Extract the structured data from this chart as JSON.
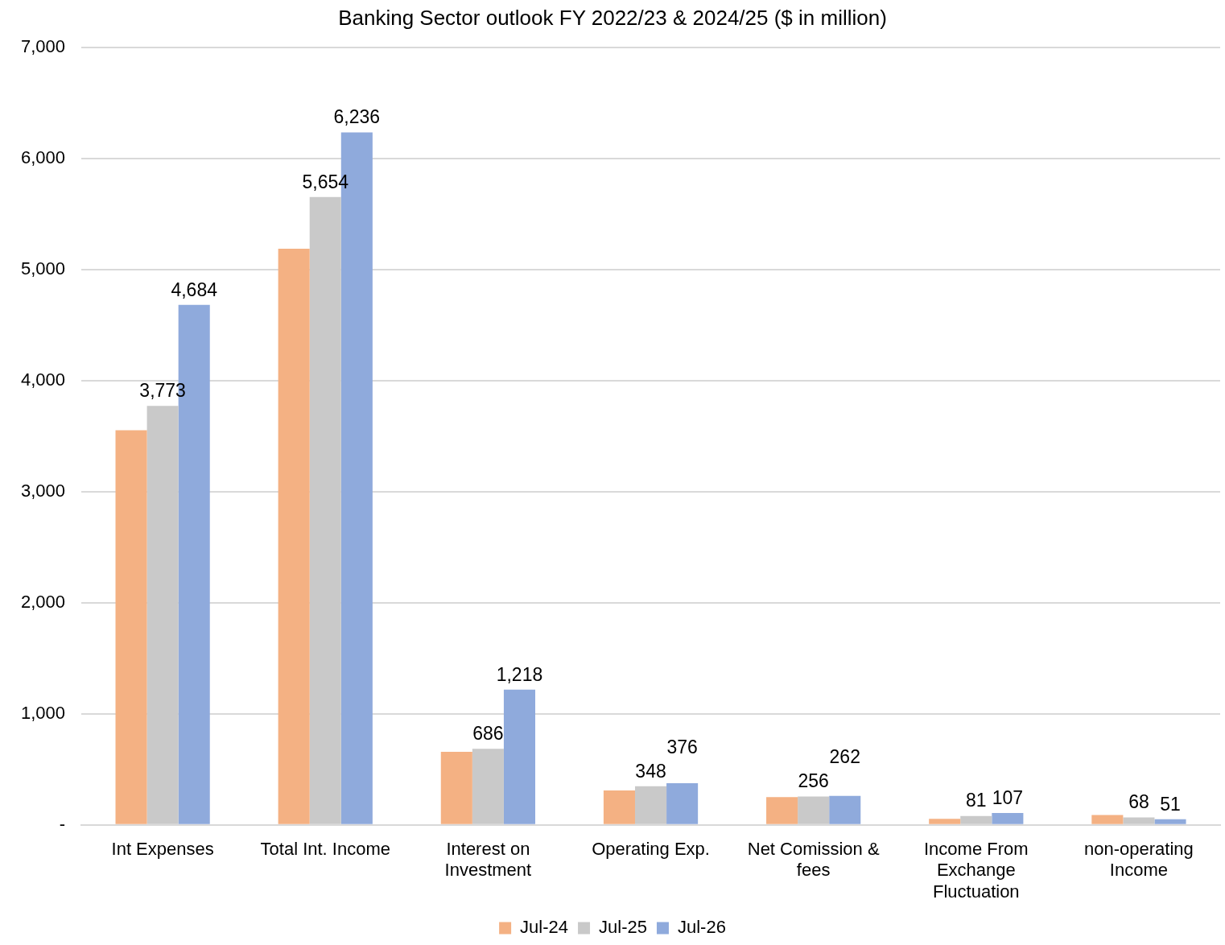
{
  "chart_data": {
    "type": "bar",
    "title": "Banking Sector outlook FY 2022/23 & 2024/25 ($ in million)",
    "categories": [
      "Int Expenses",
      "Total Int. Income",
      "Interest on Investment",
      "Operating Exp.",
      "Net Comission & fees",
      "Income From Exchange Fluctuation",
      "non-operating Income"
    ],
    "series": [
      {
        "name": "Jul-24",
        "color": "#f4b183",
        "values": [
          3555,
          5190,
          658,
          310,
          250,
          55,
          90
        ]
      },
      {
        "name": "Jul-25",
        "color": "#c9c9c9",
        "values": [
          3773,
          5654,
          686,
          348,
          256,
          81,
          68
        ],
        "value_labels": [
          "3,773",
          "5,654",
          "686",
          "348",
          "256",
          "81",
          "68"
        ]
      },
      {
        "name": "Jul-26",
        "color": "#8faadc",
        "values": [
          4684,
          6236,
          1218,
          376,
          262,
          107,
          51
        ],
        "value_labels": [
          "4,684",
          "6,236",
          "1,218",
          "376",
          "262",
          "107",
          "51"
        ]
      }
    ],
    "ylim": [
      0,
      7000
    ],
    "yticks": [
      {
        "value": 0,
        "label": "-"
      },
      {
        "value": 1000,
        "label": "1,000"
      },
      {
        "value": 2000,
        "label": "2,000"
      },
      {
        "value": 3000,
        "label": "3,000"
      },
      {
        "value": 4000,
        "label": "4,000"
      },
      {
        "value": 5000,
        "label": "5,000"
      },
      {
        "value": 6000,
        "label": "6,000"
      },
      {
        "value": 7000,
        "label": "7,000"
      }
    ],
    "grid": "y",
    "legend": "bottom"
  }
}
